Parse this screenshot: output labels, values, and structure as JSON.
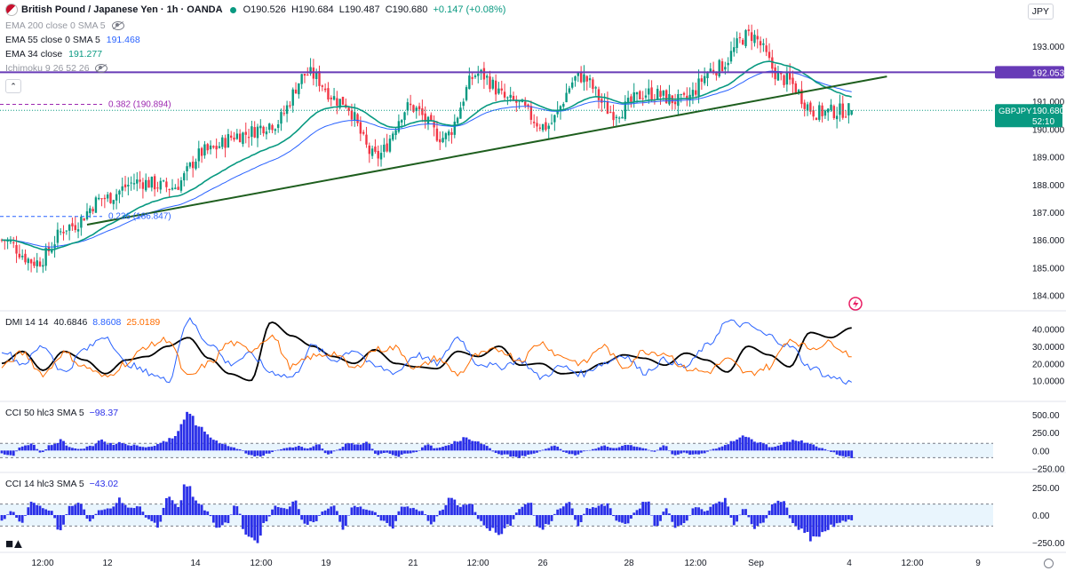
{
  "header": {
    "title": "British Pound / Japanese Yen · 1h · OANDA",
    "open": "O190.526",
    "high": "H190.684",
    "low": "L190.487",
    "close": "C190.680",
    "change": "+0.147 (+0.08%)",
    "status_color": "#089981"
  },
  "currency_button": "JPY",
  "indicators": [
    {
      "label": "EMA 200 close 0 SMA 5",
      "value": "",
      "color": "#9598a1"
    },
    {
      "label": "EMA 55 close 0 SMA 5",
      "value": "191.468",
      "color": "#2962ff"
    },
    {
      "label": "EMA 34 close",
      "value": "191.277",
      "color": "#089981"
    },
    {
      "label": "Ichimoku 9 26 52 26",
      "value": "",
      "color": "#9598a1"
    }
  ],
  "fib_labels": {
    "upper": "0.382 (190.894)",
    "lower": "0.236 (186.847)"
  },
  "badges": {
    "resistance": "192.053",
    "symbol": "GBPJPY",
    "last": "190.680",
    "countdown": "52:10"
  },
  "panes": {
    "dmi": {
      "label": "DMI 14 14",
      "adx": "40.6846",
      "plus_di": "8.8608",
      "minus_di": "25.0189"
    },
    "cci50": {
      "label": "CCI 50 hlc3 SMA 5",
      "value": "−98.37"
    },
    "cci14": {
      "label": "CCI 14 hlc3 SMA 5",
      "value": "−43.02"
    }
  },
  "colors": {
    "up": "#089981",
    "down": "#f23645",
    "resistance": "#673ab7",
    "trendline": "#1e5e1e",
    "ema34": "#089981",
    "ema55": "#2962ff",
    "adx": "#000000",
    "plus_di": "#2962ff",
    "minus_di": "#ff6d00",
    "cci_hist": "#2a2fe8",
    "band": "#e3f2fd"
  },
  "chart_data": [
    {
      "type": "candlestick",
      "title": "British Pound / Japanese Yen · 1h · OANDA",
      "x_tick_labels": [
        "12:00",
        "12",
        "14",
        "12:00",
        "19",
        "21",
        "12:00",
        "26",
        "28",
        "12:00",
        "Sep",
        "4",
        "12:00",
        "9"
      ],
      "y_ticks": [
        184.0,
        185.0,
        186.0,
        187.0,
        188.0,
        189.0,
        190.0,
        191.0,
        193.0
      ],
      "y_tick_labels": [
        "184.000",
        "185.000",
        "186.000",
        "187.000",
        "188.000",
        "189.000",
        "190.000",
        "191.000",
        "193.000"
      ],
      "ylim": [
        183.6,
        193.7
      ],
      "bar_count": 290,
      "closes_approx": [
        186.0,
        185.2,
        186.5,
        187.5,
        188.1,
        187.9,
        189.2,
        189.8,
        190.2,
        192.0,
        191.0,
        189.0,
        190.8,
        189.7,
        192.0,
        191.0,
        190.1,
        191.9,
        190.6,
        191.3,
        191.0,
        192.2,
        193.4,
        191.8,
        190.6,
        190.68
      ],
      "ohlc_last": {
        "open": 190.526,
        "high": 190.684,
        "low": 190.487,
        "close": 190.68
      },
      "horizontal_levels": [
        {
          "price": 192.053,
          "label": "192.053"
        }
      ],
      "fib_levels": [
        {
          "label": "0.382 (190.894)",
          "price": 190.894
        },
        {
          "label": "0.236 (186.847)",
          "price": 186.847
        }
      ],
      "trendline": {
        "from": {
          "bar": 29,
          "price": 186.55
        },
        "to": {
          "bar": 301,
          "price": 191.9
        }
      },
      "ema_values": {
        "ema55": 191.468,
        "ema34": 191.277
      },
      "last_price": 190.68
    },
    {
      "type": "line",
      "title": "DMI 14 14",
      "y_tick_labels": [
        "10.0000",
        "20.0000",
        "30.0000",
        "40.0000"
      ],
      "ylim": [
        0,
        48
      ],
      "series": [
        {
          "name": "ADX",
          "last": 40.6846,
          "anchors": [
            20,
            27,
            16,
            27,
            22,
            14,
            22,
            24,
            30,
            35,
            23,
            14,
            10,
            44,
            36,
            30,
            24,
            20,
            28,
            20,
            18,
            17,
            27,
            24,
            30,
            19,
            20,
            14,
            15,
            20,
            25,
            23,
            19,
            26,
            22,
            15,
            30,
            25,
            18,
            38,
            35,
            40.68
          ]
        },
        {
          "name": "+DI",
          "last": 8.8608,
          "anchors": [
            28,
            20,
            30,
            15,
            28,
            36,
            20,
            15,
            10,
            45,
            32,
            20,
            25,
            15,
            12,
            30,
            22,
            28,
            18,
            15,
            25,
            20,
            35,
            20,
            18,
            22,
            12,
            18,
            14,
            20,
            25,
            15,
            22,
            18,
            30,
            44,
            42,
            36,
            30,
            18,
            12,
            8.86
          ]
        },
        {
          "name": "-DI",
          "last": 25.0189,
          "anchors": [
            18,
            26,
            14,
            26,
            18,
            12,
            20,
            30,
            34,
            12,
            20,
            32,
            28,
            36,
            18,
            24,
            26,
            17,
            28,
            29,
            17,
            23,
            14,
            25,
            28,
            22,
            32,
            24,
            20,
            30,
            18,
            27,
            26,
            17,
            15,
            22,
            14,
            18,
            34,
            29,
            32,
            25.02
          ]
        }
      ]
    },
    {
      "type": "bar",
      "title": "CCI 50 hlc3 SMA 5",
      "y_tick_labels": [
        "500.00",
        "250.00",
        "0.00",
        "−250.00"
      ],
      "ylim": [
        -280,
        560
      ],
      "band": [
        -100,
        100
      ],
      "last": -98.37,
      "anchors": [
        -40,
        -80,
        60,
        100,
        -30,
        80,
        140,
        40,
        20,
        60,
        150,
        90,
        110,
        80,
        60,
        50,
        100,
        160,
        300,
        540,
        300,
        200,
        120,
        60,
        20,
        -60,
        -80,
        -40,
        10,
        40,
        60,
        30,
        80,
        -60,
        10,
        100,
        80,
        110,
        -60,
        -30,
        -80,
        -40,
        -20,
        80,
        30,
        60,
        120,
        200,
        130,
        80,
        -40,
        -60,
        -100,
        -70,
        -40,
        20,
        80,
        -30,
        -60,
        -10,
        20,
        70,
        30,
        80,
        60,
        30,
        -20,
        80,
        -60,
        -30,
        -60,
        -40,
        20,
        60,
        140,
        190,
        140,
        100,
        40,
        100,
        150,
        120,
        80,
        30,
        -20,
        -80,
        -98
      ]
    },
    {
      "type": "bar",
      "title": "CCI 14 hlc3 SMA 5",
      "y_tick_labels": [
        "250.00",
        "0.00",
        "−250.00"
      ],
      "ylim": [
        -300,
        300
      ],
      "band": [
        -100,
        100
      ],
      "last": -43.02,
      "anchors": [
        -60,
        40,
        -80,
        120,
        80,
        40,
        -150,
        80,
        120,
        -60,
        40,
        60,
        140,
        60,
        80,
        -40,
        -100,
        180,
        80,
        300,
        120,
        40,
        -120,
        -80,
        100,
        -180,
        -280,
        -60,
        80,
        60,
        120,
        -80,
        -60,
        40,
        80,
        -120,
        100,
        60,
        40,
        -60,
        -120,
        90,
        60,
        40,
        -80,
        40,
        160,
        80,
        100,
        -60,
        -130,
        -180,
        -90,
        60,
        120,
        -140,
        -80,
        60,
        130,
        -90,
        60,
        80,
        100,
        -60,
        -80,
        40,
        140,
        -120,
        60,
        -120,
        -60,
        80,
        40,
        100,
        140,
        -80,
        60,
        -120,
        -60,
        100,
        130,
        -80,
        -140,
        -220,
        -160,
        -100,
        -60,
        -43
      ]
    }
  ]
}
